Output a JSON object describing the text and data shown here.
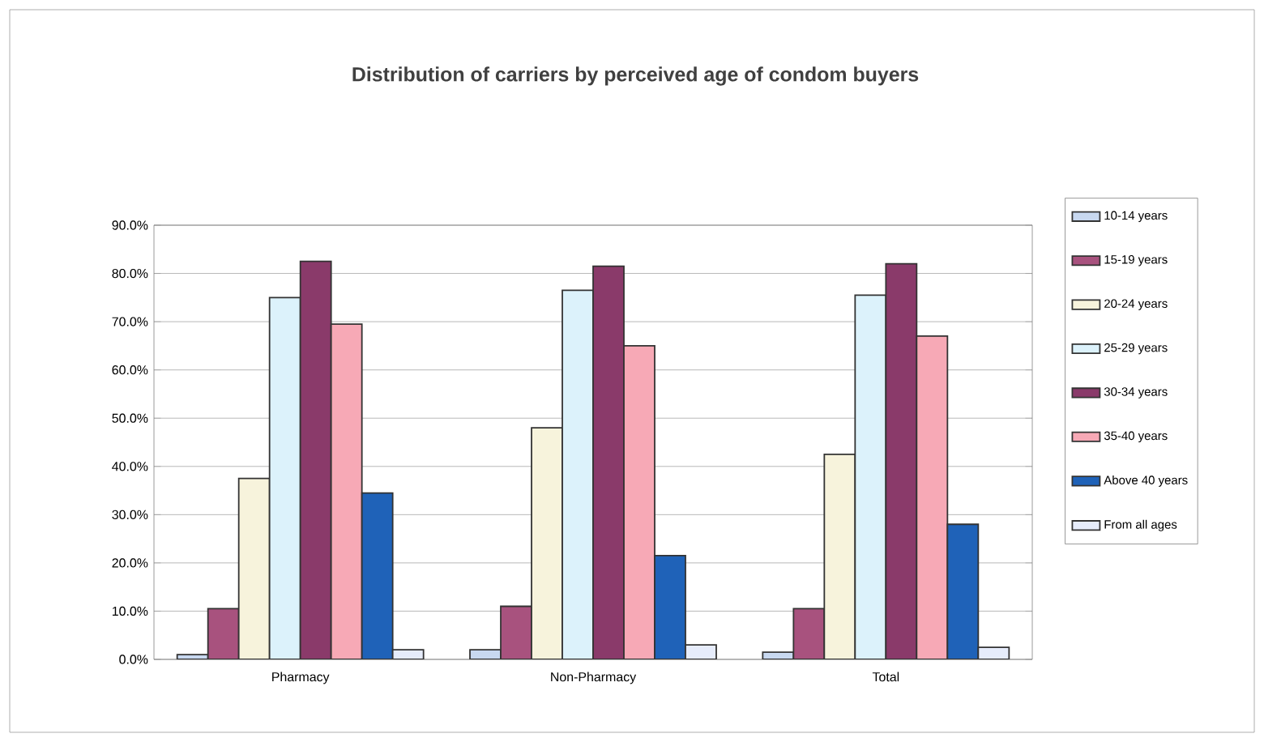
{
  "chart_data": {
    "type": "bar",
    "title": "Distribution of carriers by perceived age of condom buyers",
    "categories": [
      "Pharmacy",
      "Non-Pharmacy",
      "Total"
    ],
    "series": [
      {
        "name": "10-14 years",
        "color": "#c8d8f0",
        "values": [
          1.0,
          2.0,
          1.5
        ]
      },
      {
        "name": "15-19 years",
        "color": "#a8527e",
        "values": [
          10.5,
          11.0,
          10.5
        ]
      },
      {
        "name": "20-24 years",
        "color": "#f7f3dc",
        "values": [
          37.5,
          48.0,
          42.5
        ]
      },
      {
        "name": "25-29 years",
        "color": "#dcf2fb",
        "values": [
          75.0,
          76.5,
          75.5
        ]
      },
      {
        "name": "30-34 years",
        "color": "#8a3a6a",
        "values": [
          82.5,
          81.5,
          82.0
        ]
      },
      {
        "name": "35-40 years",
        "color": "#f7a9b6",
        "values": [
          69.5,
          65.0,
          67.0
        ]
      },
      {
        "name": "Above 40 years",
        "color": "#1f62b8",
        "values": [
          34.5,
          21.5,
          28.0
        ]
      },
      {
        "name": "From all ages",
        "color": "#e6ecfb",
        "values": [
          2.0,
          3.0,
          2.5
        ]
      }
    ],
    "ylim": [
      0,
      90
    ],
    "yticks": [
      {
        "value": 0,
        "label": "0.0%"
      },
      {
        "value": 10,
        "label": "10.0%"
      },
      {
        "value": 20,
        "label": "20.0%"
      },
      {
        "value": 30,
        "label": "30.0%"
      },
      {
        "value": 40,
        "label": "40.0%"
      },
      {
        "value": 50,
        "label": "50.0%"
      },
      {
        "value": 60,
        "label": "60.0%"
      },
      {
        "value": 70,
        "label": "70.0%"
      },
      {
        "value": 80,
        "label": "80.0%"
      },
      {
        "value": 90,
        "label": "90.0%"
      }
    ],
    "grid": "y",
    "legend": "right"
  }
}
